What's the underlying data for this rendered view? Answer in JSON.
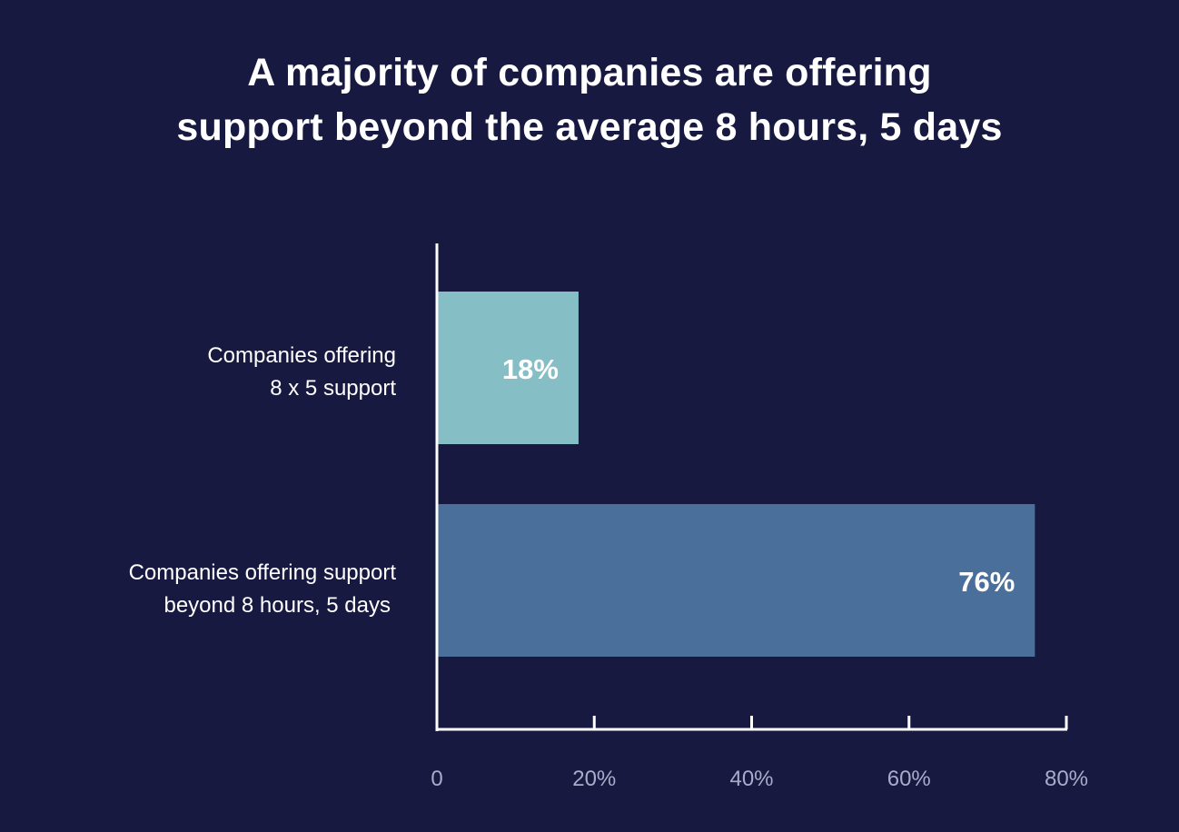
{
  "chart_data": {
    "type": "bar",
    "orientation": "horizontal",
    "title_lines": [
      "A majority of companies are offering",
      "support beyond the average 8 hours, 5 days"
    ],
    "categories": [
      [
        "Companies offering",
        "8 x 5 support"
      ],
      [
        "Companies offering support",
        "beyond  8 hours, 5 days"
      ]
    ],
    "values": [
      18,
      76
    ],
    "value_labels": [
      "18%",
      "76%"
    ],
    "bar_colors": [
      "#86bec6",
      "#4b6f9b"
    ],
    "xlim": [
      0,
      80
    ],
    "xticks": [
      0,
      20,
      40,
      60,
      80
    ],
    "xtick_labels": [
      "0",
      "20%",
      "40%",
      "60%",
      "80%"
    ],
    "grid": false,
    "legend": "none"
  },
  "colors": {
    "background": "#171940",
    "axis": "#ffffff",
    "tick_label": "#a9acc8",
    "text": "#ffffff"
  }
}
